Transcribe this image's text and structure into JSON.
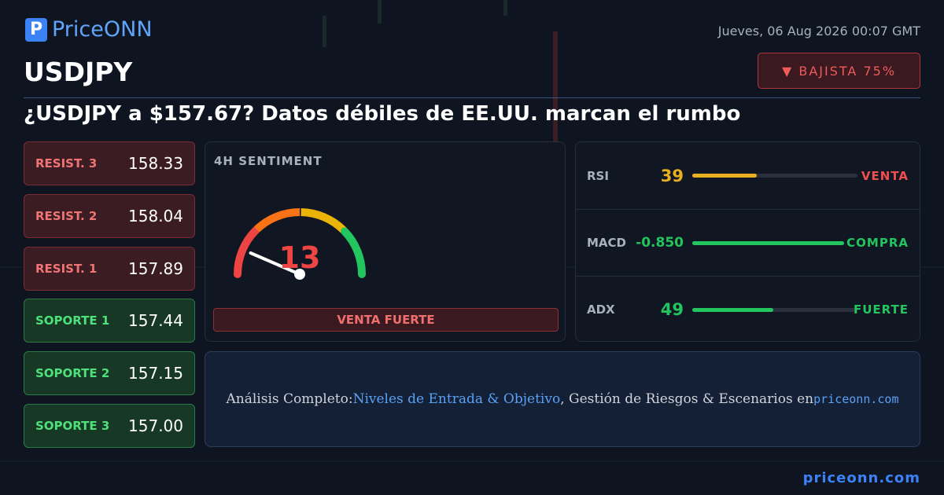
{
  "header": {
    "brand": "PriceONN",
    "datetime": "Jueves, 06 Aug 2026 00:07 GMT",
    "symbol": "USDJPY",
    "badge": "▼ BAJISTA 75%"
  },
  "headline": "¿USDJPY a $157.67? Datos débiles de EE.UU. marcan el rumbo",
  "levels": [
    {
      "label": "RESIST. 3",
      "value": "158.33",
      "kind": "resistance"
    },
    {
      "label": "RESIST. 2",
      "value": "158.04",
      "kind": "resistance"
    },
    {
      "label": "RESIST. 1",
      "value": "157.89",
      "kind": "resistance"
    },
    {
      "label": "SOPORTE 1",
      "value": "157.44",
      "kind": "support"
    },
    {
      "label": "SOPORTE 2",
      "value": "157.15",
      "kind": "support"
    },
    {
      "label": "SOPORTE 3",
      "value": "157.00",
      "kind": "support"
    }
  ],
  "sentiment": {
    "title": "4H SENTIMENT",
    "value": 13,
    "range": [
      0,
      100
    ],
    "label": "VENTA FUERTE"
  },
  "indicators": [
    {
      "name": "RSI",
      "value": 39,
      "range": [
        0,
        100
      ],
      "signal": "VENTA",
      "color": "#e8b020",
      "signal_color": "#ef4f4f"
    },
    {
      "name": "MACD",
      "value": "-0.850",
      "signal": "COMPRA",
      "color": "#22c55e",
      "signal_color": "#22c55e"
    },
    {
      "name": "ADX",
      "value": 49,
      "range": [
        0,
        100
      ],
      "signal": "FUERTE",
      "color": "#22c55e",
      "signal_color": "#22c55e"
    }
  ],
  "cta": {
    "parts": [
      "Análisis Completo: ",
      "Niveles de Entrada & Objetivo",
      ", Gestión de Riesgos & Escenarios en ",
      "priceonn.com"
    ]
  },
  "footer": "priceonn.com"
}
